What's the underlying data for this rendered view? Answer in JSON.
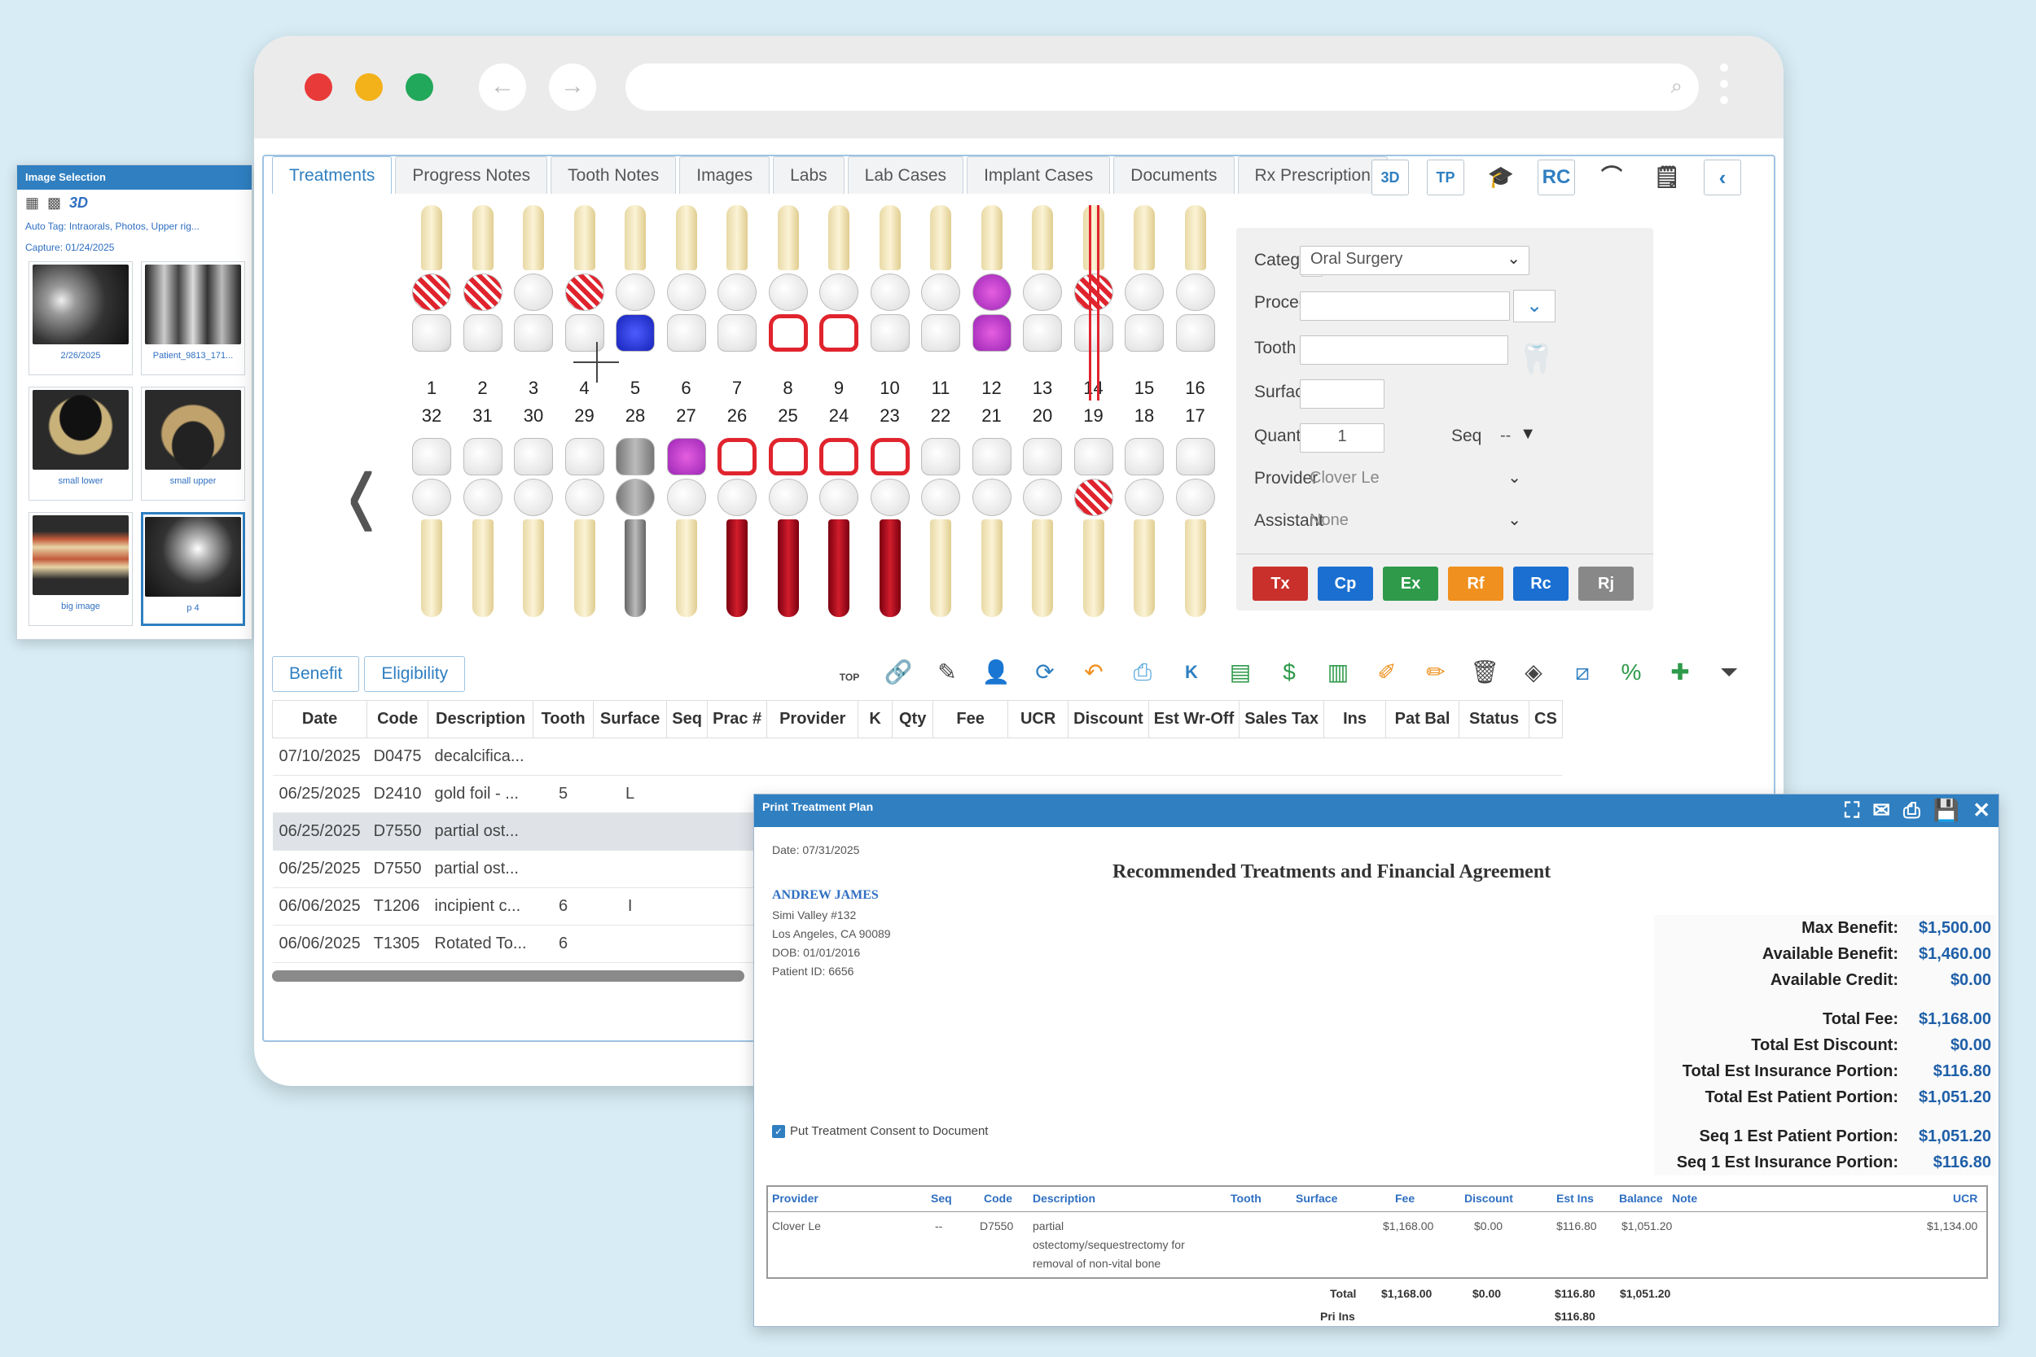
{
  "image_panel": {
    "title": "Image Selection",
    "auto_tag": "Auto Tag: Intraorals, Photos, Upper rig...",
    "capture": "Capture: 01/24/2025",
    "thumbnails": [
      {
        "caption": "2/26/2025"
      },
      {
        "caption": "Patient_9813_171..."
      },
      {
        "caption": "small lower"
      },
      {
        "caption": "small upper"
      },
      {
        "caption": "big image"
      },
      {
        "caption": "p 4"
      }
    ]
  },
  "tabs": [
    "Treatments",
    "Progress Notes",
    "Tooth Notes",
    "Images",
    "Labs",
    "Lab Cases",
    "Implant Cases",
    "Documents",
    "Rx Prescription"
  ],
  "tab_icons": {
    "three_d": "3D",
    "tp": "TP",
    "rc": "RC"
  },
  "teeth": {
    "upper_numbers": [
      "1",
      "2",
      "3",
      "4",
      "5",
      "6",
      "7",
      "8",
      "9",
      "10",
      "11",
      "12",
      "13",
      "14",
      "15",
      "16"
    ],
    "lower_numbers": [
      "32",
      "31",
      "30",
      "29",
      "28",
      "27",
      "26",
      "25",
      "24",
      "23",
      "22",
      "21",
      "20",
      "19",
      "18",
      "17"
    ]
  },
  "form": {
    "category_label": "Category",
    "category_value": "Oral Surgery",
    "procedure_label": "Procedure",
    "tooth_label": "Tooth",
    "surface_label": "Surface",
    "quantity_label": "Quantity",
    "quantity_value": "1",
    "seq_label": "Seq",
    "seq_value": "--",
    "provider_label": "Provider",
    "provider_value": "Clover Le",
    "assistant_label": "Assistant",
    "assistant_value": "None",
    "buttons": [
      {
        "label": "Tx",
        "color": "#c9302c"
      },
      {
        "label": "Cp",
        "color": "#1a6fd1"
      },
      {
        "label": "Ex",
        "color": "#2e9a4a"
      },
      {
        "label": "Rf",
        "color": "#f0901e"
      },
      {
        "label": "Rc",
        "color": "#1a6fd1"
      },
      {
        "label": "Rj",
        "color": "#888888"
      }
    ]
  },
  "benefit_buttons": {
    "benefit": "Benefit",
    "eligibility": "Eligibility"
  },
  "toolbar_top_label": "TOP",
  "table": {
    "headers": [
      "Date",
      "Code",
      "Description",
      "Tooth",
      "Surface",
      "Seq",
      "Prac #",
      "Provider",
      "K",
      "Qty",
      "Fee",
      "UCR",
      "Discount",
      "Est Wr-Off",
      "Sales Tax",
      "Ins",
      "Pat Bal",
      "Status",
      "CS"
    ],
    "rows": [
      {
        "date": "07/10/2025",
        "code": "D0475",
        "desc": "decalcifica...",
        "tooth": "",
        "surface": ""
      },
      {
        "date": "06/25/2025",
        "code": "D2410",
        "desc": "gold foil - ...",
        "tooth": "5",
        "surface": "L"
      },
      {
        "date": "06/25/2025",
        "code": "D7550",
        "desc": "partial ost...",
        "tooth": "",
        "surface": ""
      },
      {
        "date": "06/25/2025",
        "code": "D7550",
        "desc": "partial ost...",
        "tooth": "",
        "surface": ""
      },
      {
        "date": "06/06/2025",
        "code": "T1206",
        "desc": "incipient c...",
        "tooth": "6",
        "surface": "I"
      },
      {
        "date": "06/06/2025",
        "code": "T1305",
        "desc": "Rotated To...",
        "tooth": "6",
        "surface": ""
      }
    ]
  },
  "print": {
    "window_title": "Print Treatment Plan",
    "date": "Date: 07/31/2025",
    "title": "Recommended Treatments and Financial Agreement",
    "patient_name": "ANDREW JAMES",
    "address1": "Simi Valley #132",
    "address2": "Los Angeles, CA 90089",
    "dob": "DOB: 01/01/2016",
    "patient_id": "Patient ID: 6656",
    "financials": [
      {
        "label": "Max Benefit:",
        "value": "$1,500.00"
      },
      {
        "label": "Available Benefit:",
        "value": "$1,460.00"
      },
      {
        "label": "Available Credit:",
        "value": "$0.00"
      },
      {
        "label": "Total Fee:",
        "value": "$1,168.00"
      },
      {
        "label": "Total Est Discount:",
        "value": "$0.00"
      },
      {
        "label": "Total Est Insurance Portion:",
        "value": "$116.80"
      },
      {
        "label": "Total Est Patient Portion:",
        "value": "$1,051.20"
      },
      {
        "label": "Seq 1 Est Patient Portion:",
        "value": "$1,051.20"
      },
      {
        "label": "Seq 1 Est Insurance Portion:",
        "value": "$116.80"
      }
    ],
    "consent_label": "Put Treatment Consent to Document",
    "columns": [
      "Provider",
      "Seq",
      "Code",
      "Description",
      "Tooth",
      "Surface",
      "Fee",
      "Discount",
      "Est Ins",
      "Balance",
      "Note",
      "UCR"
    ],
    "row": {
      "provider": "Clover Le",
      "seq": "--",
      "code": "D7550",
      "desc1": "partial",
      "desc2": "ostectomy/sequestrectomy for",
      "desc3": "removal of non-vital bone",
      "fee": "$1,168.00",
      "discount": "$0.00",
      "est_ins": "$116.80",
      "balance": "$1,051.20",
      "ucr": "$1,134.00"
    },
    "total_label": "Total",
    "total_fee": "$1,168.00",
    "total_discount": "$0.00",
    "total_ins": "$116.80",
    "total_balance": "$1,051.20",
    "pri_ins_label": "Pri Ins",
    "pri_ins_value": "$116.80"
  }
}
